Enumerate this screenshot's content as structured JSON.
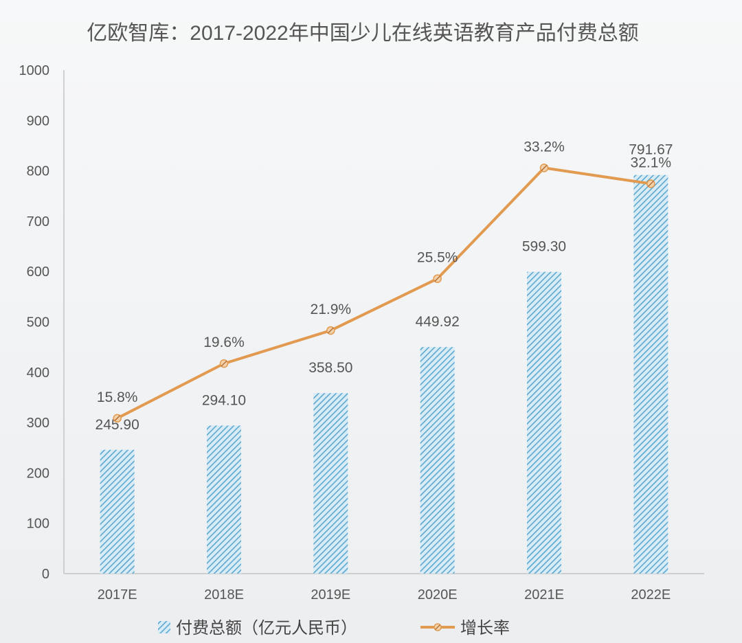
{
  "chart_data": {
    "type": "bar",
    "title": "亿欧智库：2017-2022年中国少儿在线英语教育产品付费总额",
    "categories": [
      "2017E",
      "2018E",
      "2019E",
      "2020E",
      "2021E",
      "2022E"
    ],
    "ylim": [
      0,
      1000
    ],
    "yticks": [
      0,
      100,
      200,
      300,
      400,
      500,
      600,
      700,
      800,
      900,
      1000
    ],
    "grid": false,
    "legend_position": "bottom",
    "series": [
      {
        "name": "付费总额（亿元人民币）",
        "kind": "bar",
        "values": [
          245.9,
          294.1,
          358.5,
          449.92,
          599.3,
          791.67
        ],
        "labels": [
          "245.90",
          "294.10",
          "358.50",
          "449.92",
          "599.30",
          "791.67"
        ],
        "color": "#5ba7cf"
      },
      {
        "name": "增长率",
        "kind": "line",
        "values": [
          15.8,
          19.6,
          21.9,
          25.5,
          33.2,
          32.1
        ],
        "labels": [
          "15.8%",
          "19.6%",
          "21.9%",
          "25.5%",
          "33.2%",
          "32.1%"
        ],
        "color": "#e19a4f"
      }
    ]
  }
}
